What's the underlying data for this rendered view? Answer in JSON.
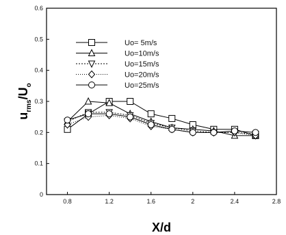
{
  "chart_data": {
    "type": "line",
    "xlabel": "X/d",
    "ylabel_main": "u",
    "ylabel_sub": "rms",
    "ylabel_mid": "/U",
    "ylabel_sub2": "o",
    "xlim": [
      0.6,
      2.8
    ],
    "ylim": [
      0,
      0.6
    ],
    "xticks": [
      {
        "value": 0.8,
        "label": "0.8"
      },
      {
        "value": 1.2,
        "label": "1.2"
      },
      {
        "value": 1.6,
        "label": "1.6"
      },
      {
        "value": 2.0,
        "label": "2"
      },
      {
        "value": 2.4,
        "label": "2.4"
      },
      {
        "value": 2.8,
        "label": "2.8"
      }
    ],
    "yticks": [
      {
        "value": 0,
        "label": "0"
      },
      {
        "value": 0.1,
        "label": "0.1"
      },
      {
        "value": 0.2,
        "label": "0.2"
      },
      {
        "value": 0.3,
        "label": "0.3"
      },
      {
        "value": 0.4,
        "label": "0.4"
      },
      {
        "value": 0.5,
        "label": "0.5"
      },
      {
        "value": 0.6,
        "label": "0.6"
      }
    ],
    "grid": false,
    "legend_position": "upper-left",
    "series": [
      {
        "name": "Uo= 5m/s",
        "marker": "square",
        "x": [
          0.8,
          1.0,
          1.2,
          1.4,
          1.6,
          1.8,
          2.0,
          2.2,
          2.4,
          2.6
        ],
        "y": [
          0.21,
          0.26,
          0.3,
          0.3,
          0.26,
          0.245,
          0.225,
          0.21,
          0.21,
          0.19
        ]
      },
      {
        "name": "Uo=10m/s",
        "marker": "triangle-up",
        "x": [
          0.8,
          1.0,
          1.2,
          1.4,
          1.6,
          1.8,
          2.0,
          2.2,
          2.4,
          2.6
        ],
        "y": [
          0.235,
          0.3,
          0.295,
          0.26,
          0.235,
          0.215,
          0.21,
          0.205,
          0.19,
          0.19
        ]
      },
      {
        "name": "Uo=15m/s",
        "marker": "triangle-down",
        "x": [
          0.8,
          1.0,
          1.2,
          1.4,
          1.6,
          1.8,
          2.0,
          2.2,
          2.4,
          2.6
        ],
        "y": [
          0.235,
          0.265,
          0.265,
          0.255,
          0.23,
          0.215,
          0.205,
          0.2,
          0.2,
          0.195
        ]
      },
      {
        "name": "Uo=20m/s",
        "marker": "diamond",
        "x": [
          0.8,
          1.0,
          1.2,
          1.4,
          1.6,
          1.8,
          2.0,
          2.2,
          2.4,
          2.6
        ],
        "y": [
          0.225,
          0.25,
          0.255,
          0.245,
          0.22,
          0.21,
          0.2,
          0.2,
          0.2,
          0.19
        ]
      },
      {
        "name": "Uo=25m/s",
        "marker": "circle",
        "x": [
          0.8,
          1.0,
          1.2,
          1.4,
          1.6,
          1.8,
          2.0,
          2.2,
          2.4,
          2.6
        ],
        "y": [
          0.24,
          0.26,
          0.26,
          0.25,
          0.225,
          0.21,
          0.2,
          0.2,
          0.205,
          0.2
        ]
      }
    ]
  }
}
